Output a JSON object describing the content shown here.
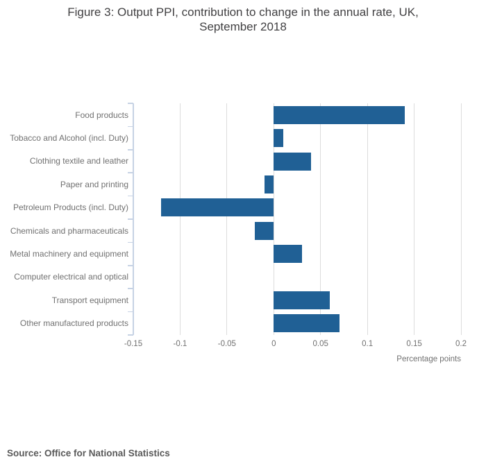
{
  "title": {
    "line1": "Figure 3: Output PPI, contribution to change in the annual rate, UK,",
    "line2": "September 2018"
  },
  "source_text": "Source: Office for National Statistics",
  "chart_data": {
    "type": "bar",
    "orientation": "horizontal",
    "title": "Figure 3: Output PPI, contribution to change in the annual rate, UK, September 2018",
    "categories": [
      "Food products",
      "Tobacco and Alcohol (incl. Duty)",
      "Clothing textile and leather",
      "Paper and printing",
      "Petroleum Products (incl. Duty)",
      "Chemicals and pharmaceuticals",
      "Metal machinery and equipment",
      "Computer electrical and optical",
      "Transport equipment",
      "Other manufactured products"
    ],
    "values": [
      0.14,
      0.01,
      0.04,
      -0.01,
      -0.12,
      -0.02,
      0.03,
      0,
      0.06,
      0.07
    ],
    "xlabel": "Percentage points",
    "ylabel": "",
    "xlim": [
      -0.15,
      0.2
    ],
    "xticks": [
      -0.15,
      -0.1,
      -0.05,
      0,
      0.05,
      0.1,
      0.15,
      0.2
    ],
    "xtick_labels": [
      "-0.15",
      "-0.1",
      "-0.05",
      "0",
      "0.05",
      "0.1",
      "0.15",
      "0.2"
    ],
    "grid": true,
    "legend": false,
    "colors": {
      "bar": "#206095",
      "axis": "#c6d2e4",
      "gridline": "#dcdcdc",
      "label_text": "#707070",
      "title_text": "#414042",
      "source_text": "#595959"
    }
  }
}
